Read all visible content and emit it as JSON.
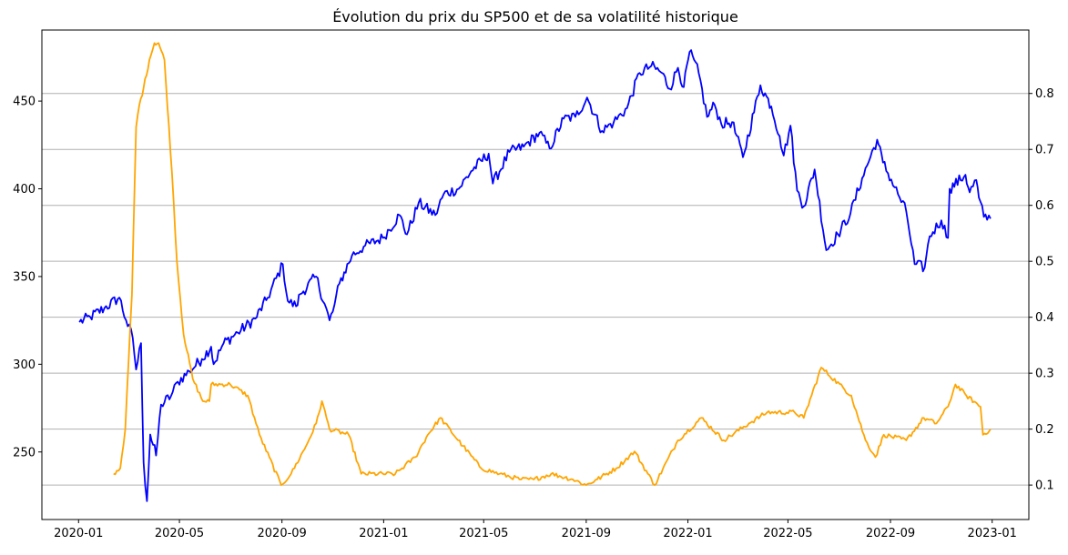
{
  "chart_data": {
    "type": "line",
    "title": "Évolution du prix du SP500 et de sa volatilité historique",
    "xlabel": "",
    "ylabel": "",
    "y2label": "",
    "grid": "horizontal lines at right-axis ticks",
    "legend": "none",
    "x_range": [
      "2019-11-18",
      "2023-02-14"
    ],
    "y_left_range": [
      211.5,
      490.5
    ],
    "y_right_range": [
      0.0384,
      0.9134
    ],
    "x_ticks": [
      "2020-01",
      "2020-05",
      "2020-09",
      "2021-01",
      "2021-05",
      "2021-09",
      "2022-01",
      "2022-05",
      "2022-09",
      "2023-01"
    ],
    "x_tick_dates": [
      "2020-01-01",
      "2020-05-01",
      "2020-09-01",
      "2021-01-01",
      "2021-05-01",
      "2021-09-01",
      "2022-01-01",
      "2022-05-01",
      "2022-09-01",
      "2023-01-01"
    ],
    "y_left_ticks": [
      "250",
      "300",
      "350",
      "400",
      "450"
    ],
    "y_left_tick_values": [
      250,
      300,
      350,
      400,
      450
    ],
    "y_right_ticks": [
      "0.1",
      "0.2",
      "0.3",
      "0.4",
      "0.5",
      "0.6",
      "0.7",
      "0.8"
    ],
    "y_right_tick_values": [
      0.1,
      0.2,
      0.3,
      0.4,
      0.5,
      0.6,
      0.7,
      0.8
    ],
    "series": [
      {
        "axis": "left",
        "color": "#0000ff",
        "x": [
          "2020-01-02",
          "2020-01-15",
          "2020-02-01",
          "2020-02-19",
          "2020-02-27",
          "2020-03-06",
          "2020-03-10",
          "2020-03-16",
          "2020-03-19",
          "2020-03-23",
          "2020-03-27",
          "2020-04-03",
          "2020-04-09",
          "2020-04-21",
          "2020-04-29",
          "2020-05-13",
          "2020-05-28",
          "2020-06-08",
          "2020-06-11",
          "2020-06-23",
          "2020-07-10",
          "2020-07-31",
          "2020-08-15",
          "2020-09-02",
          "2020-09-08",
          "2020-09-18",
          "2020-09-23",
          "2020-10-12",
          "2020-10-28",
          "2020-11-01",
          "2020-11-09",
          "2020-11-24",
          "2020-12-08",
          "2020-12-31",
          "2021-01-20",
          "2021-01-29",
          "2021-02-12",
          "2021-03-04",
          "2021-03-14",
          "2021-04-01",
          "2021-04-16",
          "2021-05-07",
          "2021-05-12",
          "2021-06-01",
          "2021-06-18",
          "2021-07-07",
          "2021-07-19",
          "2021-08-05",
          "2021-08-19",
          "2021-09-02",
          "2021-09-20",
          "2021-10-04",
          "2021-10-20",
          "2021-11-04",
          "2021-11-18",
          "2021-12-01",
          "2021-12-10",
          "2021-12-20",
          "2021-12-27",
          "2022-01-03",
          "2022-01-14",
          "2022-01-24",
          "2022-02-02",
          "2022-02-10",
          "2022-02-23",
          "2022-03-08",
          "2022-03-29",
          "2022-04-11",
          "2022-04-21",
          "2022-04-26",
          "2022-05-04",
          "2022-05-12",
          "2022-05-20",
          "2022-06-02",
          "2022-06-16",
          "2022-06-30",
          "2022-07-15",
          "2022-07-29",
          "2022-08-16",
          "2022-08-23",
          "2022-09-12",
          "2022-09-20",
          "2022-09-30",
          "2022-10-12",
          "2022-10-18",
          "2022-11-01",
          "2022-11-09",
          "2022-11-11",
          "2022-11-30",
          "2022-12-05",
          "2022-12-13",
          "2022-12-16",
          "2022-12-22",
          "2022-12-30"
        ],
        "values": [
          324,
          327,
          332,
          338,
          325,
          315,
          297,
          312,
          244,
          222,
          260,
          248,
          277,
          282,
          290,
          296,
          303,
          310,
          300,
          312,
          318,
          326,
          338,
          357,
          336,
          333,
          340,
          350,
          325,
          330,
          346,
          362,
          367,
          372,
          385,
          374,
          392,
          385,
          397,
          400,
          410,
          420,
          403,
          421,
          424,
          432,
          423,
          440,
          441,
          452,
          433,
          438,
          446,
          466,
          470,
          466,
          457,
          469,
          458,
          478,
          466,
          441,
          448,
          437,
          438,
          418,
          459,
          447,
          430,
          419,
          436,
          399,
          390,
          411,
          365,
          374,
          386,
          406,
          428,
          415,
          395,
          387,
          357,
          355,
          373,
          382,
          372,
          400,
          408,
          398,
          405,
          395,
          384,
          383
        ]
      },
      {
        "axis": "right",
        "color": "#ffa500",
        "x": [
          "2020-02-12",
          "2020-02-20",
          "2020-02-26",
          "2020-03-05",
          "2020-03-10",
          "2020-03-14",
          "2020-03-19",
          "2020-03-26",
          "2020-04-01",
          "2020-04-06",
          "2020-04-13",
          "2020-04-22",
          "2020-04-28",
          "2020-05-06",
          "2020-05-17",
          "2020-05-29",
          "2020-06-06",
          "2020-06-08",
          "2020-07-01",
          "2020-07-22",
          "2020-08-05",
          "2020-08-31",
          "2020-09-12",
          "2020-09-30",
          "2020-10-12",
          "2020-10-19",
          "2020-10-28",
          "2020-11-20",
          "2020-12-05",
          "2021-01-15",
          "2021-02-08",
          "2021-02-23",
          "2021-03-10",
          "2021-04-06",
          "2021-04-28",
          "2021-05-20",
          "2021-06-15",
          "2021-06-30",
          "2021-07-21",
          "2021-08-16",
          "2021-09-01",
          "2021-09-14",
          "2021-10-07",
          "2021-10-29",
          "2021-11-22",
          "2021-12-20",
          "2022-01-17",
          "2022-02-13",
          "2022-03-15",
          "2022-04-06",
          "2022-05-09",
          "2022-05-20",
          "2022-06-10",
          "2022-07-16",
          "2022-08-02",
          "2022-08-14",
          "2022-08-24",
          "2022-09-20",
          "2022-10-11",
          "2022-10-26",
          "2022-11-09",
          "2022-11-18",
          "2022-12-01",
          "2022-12-18",
          "2022-12-21",
          "2022-12-30"
        ],
        "values": [
          0.12,
          0.13,
          0.2,
          0.44,
          0.74,
          0.78,
          0.81,
          0.86,
          0.89,
          0.89,
          0.86,
          0.66,
          0.5,
          0.37,
          0.29,
          0.25,
          0.25,
          0.28,
          0.28,
          0.26,
          0.19,
          0.1,
          0.12,
          0.17,
          0.21,
          0.25,
          0.2,
          0.19,
          0.12,
          0.12,
          0.15,
          0.19,
          0.22,
          0.17,
          0.13,
          0.12,
          0.11,
          0.11,
          0.12,
          0.11,
          0.1,
          0.11,
          0.13,
          0.16,
          0.1,
          0.18,
          0.22,
          0.18,
          0.21,
          0.23,
          0.23,
          0.22,
          0.31,
          0.26,
          0.18,
          0.15,
          0.19,
          0.18,
          0.22,
          0.21,
          0.24,
          0.28,
          0.26,
          0.24,
          0.19,
          0.2
        ]
      }
    ]
  }
}
